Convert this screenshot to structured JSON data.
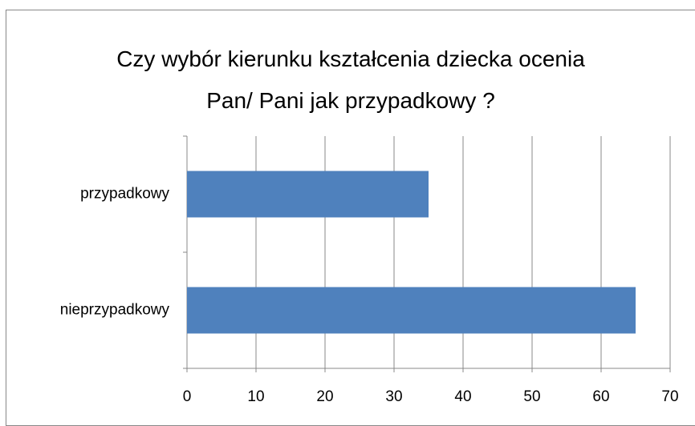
{
  "chart_data": {
    "type": "bar",
    "orientation": "horizontal",
    "title": "Czy wybór kierunku kształcenia dziecka ocenia Pan/ Pani jak przypadkowy ?",
    "categories": [
      "przypadkowy",
      "nieprzypadkowy"
    ],
    "values": [
      35,
      65
    ],
    "color": "#4f81bd",
    "xlim": [
      0,
      70
    ],
    "xticks": [
      0,
      10,
      20,
      30,
      40,
      50,
      60,
      70
    ],
    "grid": true
  }
}
